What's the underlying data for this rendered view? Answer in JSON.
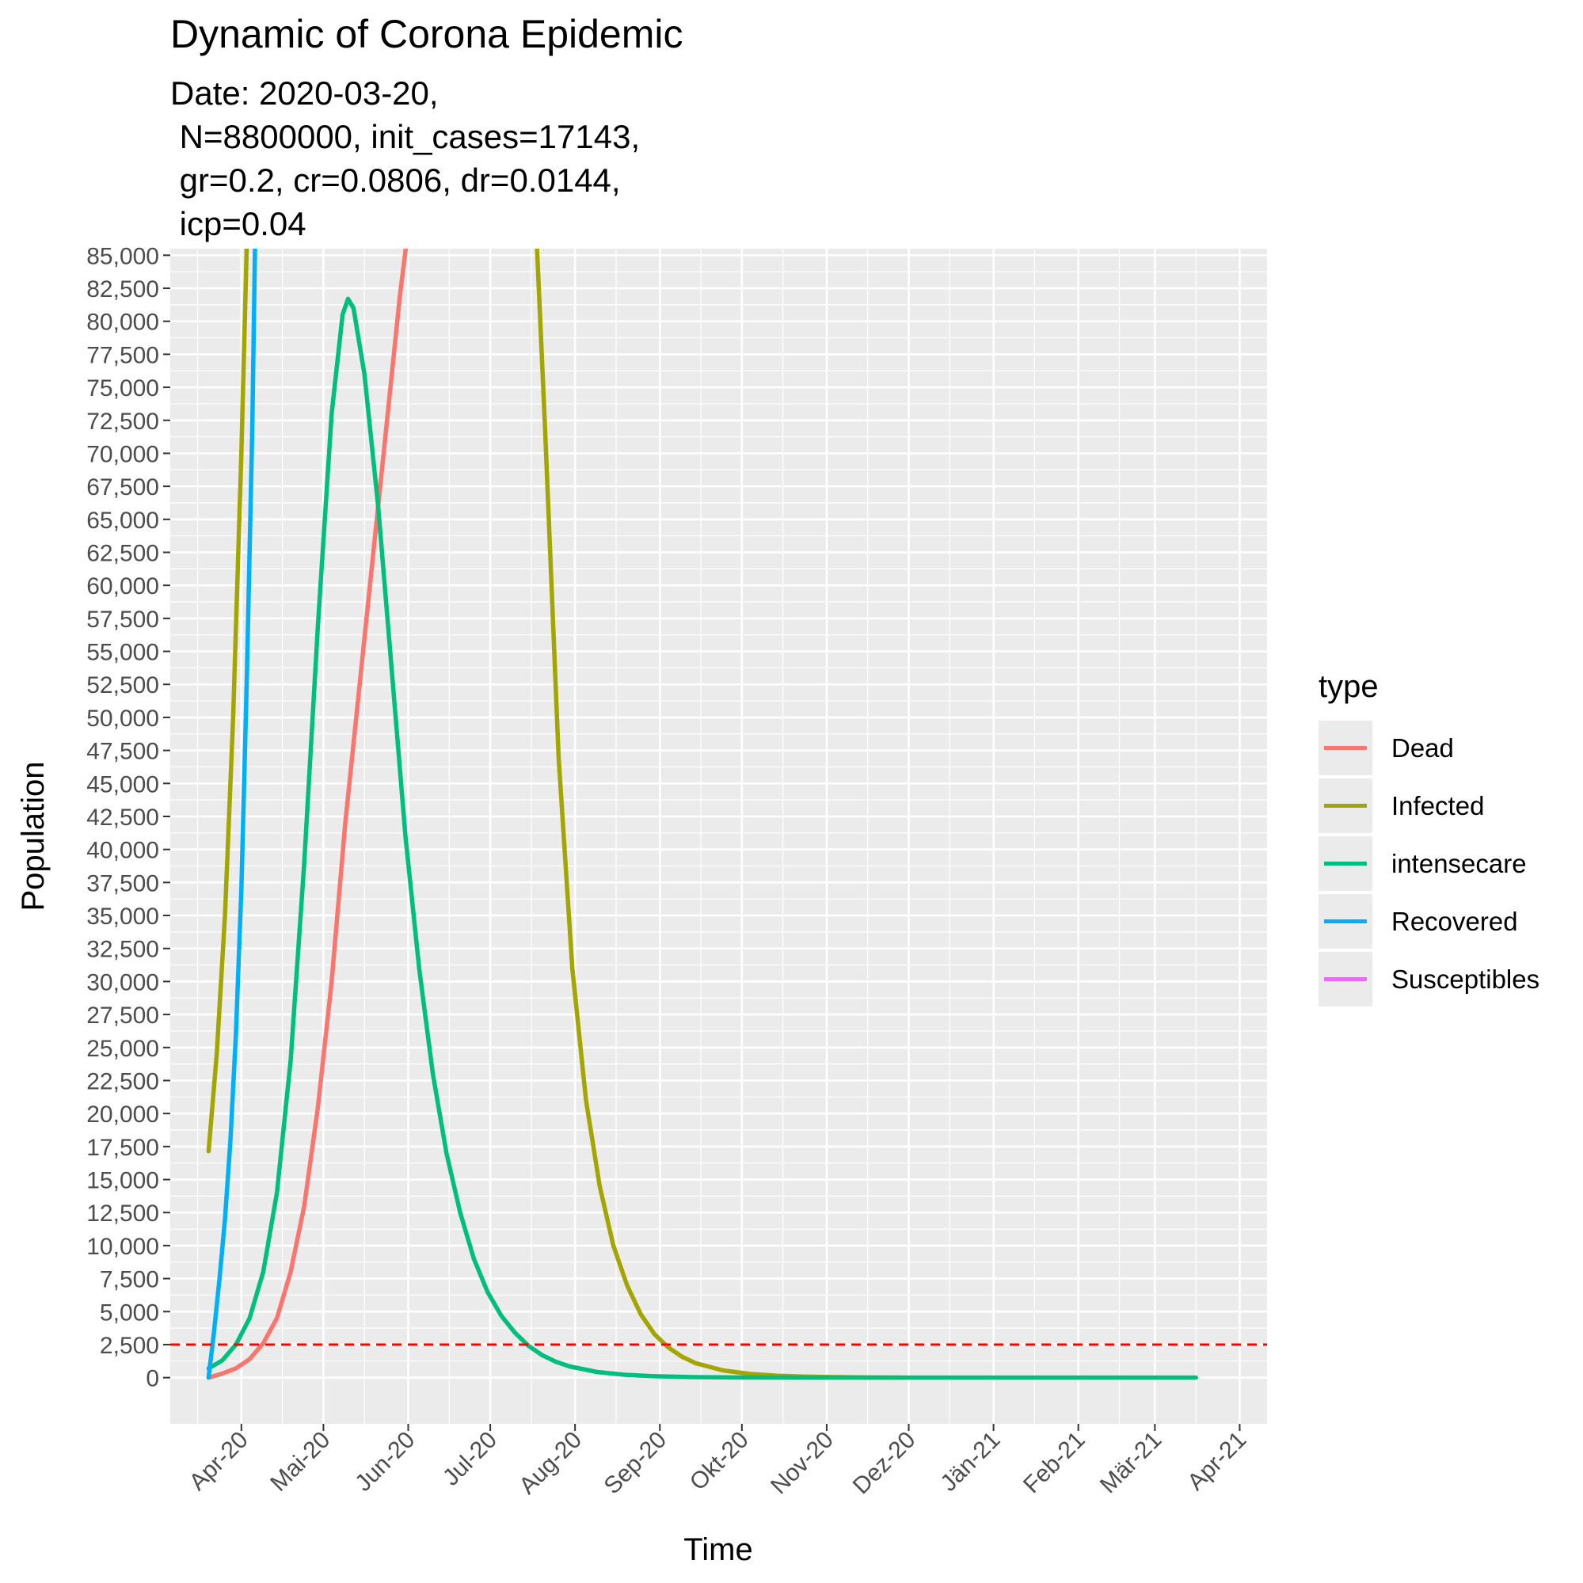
{
  "chart_data": {
    "type": "line",
    "title": "Dynamic of Corona Epidemic",
    "subtitle": "Date: 2020-03-20,\n N=8800000, init_cases=17143,\n gr=0.2, cr=0.0806, dr=0.0144,\n icp=0.04",
    "xlabel": "Time",
    "ylabel": "Population",
    "x_ticks": [
      "Apr-20",
      "Mai-20",
      "Jun-20",
      "Jul-20",
      "Aug-20",
      "Sep-20",
      "Okt-20",
      "Nov-20",
      "Dez-20",
      "Jän-21",
      "Feb-21",
      "Mär-21",
      "Apr-21"
    ],
    "y_ticks": [
      "0",
      "2,500",
      "5,000",
      "7,500",
      "10,000",
      "12,500",
      "15,000",
      "17,500",
      "20,000",
      "22,500",
      "25,000",
      "27,500",
      "30,000",
      "32,500",
      "35,000",
      "37,500",
      "40,000",
      "42,500",
      "45,000",
      "47,500",
      "50,000",
      "52,500",
      "55,000",
      "57,500",
      "60,000",
      "62,500",
      "65,000",
      "67,500",
      "70,000",
      "72,500",
      "75,000",
      "77,500",
      "80,000",
      "82,500",
      "85,000"
    ],
    "xlim": [
      "2020-03-06",
      "2021-04-11"
    ],
    "ylim": [
      -3500,
      85500
    ],
    "grid": true,
    "legend": {
      "title": "type",
      "position": "right"
    },
    "hline": {
      "value": 2500,
      "color": "#ff0000",
      "style": "dashed"
    },
    "series": [
      {
        "name": "Dead",
        "color": "#F8766D",
        "points": [
          [
            "2020-03-20",
            0
          ],
          [
            "2020-03-25",
            300
          ],
          [
            "2020-03-30",
            700
          ],
          [
            "2020-04-04",
            1400
          ],
          [
            "2020-04-09",
            2600
          ],
          [
            "2020-04-14",
            4500
          ],
          [
            "2020-04-19",
            8000
          ],
          [
            "2020-04-24",
            13000
          ],
          [
            "2020-04-29",
            20500
          ],
          [
            "2020-05-04",
            30000
          ],
          [
            "2020-05-09",
            42000
          ],
          [
            "2020-05-14",
            52000
          ],
          [
            "2020-05-19",
            62000
          ],
          [
            "2020-05-24",
            72000
          ],
          [
            "2020-05-29",
            82000
          ],
          [
            "2020-06-01",
            87000
          ]
        ]
      },
      {
        "name": "Infected",
        "color": "#A3A500",
        "points": [
          [
            "2020-03-20",
            17143
          ],
          [
            "2020-03-23",
            24500
          ],
          [
            "2020-03-26",
            35000
          ],
          [
            "2020-03-29",
            50000
          ],
          [
            "2020-04-01",
            70000
          ],
          [
            "2020-04-03",
            86000
          ],
          [
            "2020-07-18",
            86000
          ],
          [
            "2020-07-21",
            72000
          ],
          [
            "2020-07-26",
            47000
          ],
          [
            "2020-07-31",
            31000
          ],
          [
            "2020-08-05",
            21000
          ],
          [
            "2020-08-10",
            14500
          ],
          [
            "2020-08-15",
            10000
          ],
          [
            "2020-08-20",
            7000
          ],
          [
            "2020-08-25",
            4800
          ],
          [
            "2020-08-30",
            3300
          ],
          [
            "2020-09-04",
            2300
          ],
          [
            "2020-09-09",
            1600
          ],
          [
            "2020-09-14",
            1100
          ],
          [
            "2020-09-24",
            550
          ],
          [
            "2020-10-04",
            280
          ],
          [
            "2020-10-14",
            140
          ],
          [
            "2020-10-29",
            50
          ],
          [
            "2020-11-18",
            10
          ],
          [
            "2020-11-28",
            0
          ]
        ]
      },
      {
        "name": "intensecare",
        "color": "#00BF7D",
        "points": [
          [
            "2020-03-20",
            700
          ],
          [
            "2020-03-25",
            1300
          ],
          [
            "2020-03-30",
            2500
          ],
          [
            "2020-04-04",
            4500
          ],
          [
            "2020-04-09",
            8000
          ],
          [
            "2020-04-14",
            14000
          ],
          [
            "2020-04-19",
            24000
          ],
          [
            "2020-04-24",
            39000
          ],
          [
            "2020-04-29",
            57000
          ],
          [
            "2020-05-04",
            73000
          ],
          [
            "2020-05-08",
            80500
          ],
          [
            "2020-05-10",
            81700
          ],
          [
            "2020-05-12",
            81000
          ],
          [
            "2020-05-16",
            76000
          ],
          [
            "2020-05-21",
            66000
          ],
          [
            "2020-05-26",
            53500
          ],
          [
            "2020-05-31",
            41000
          ],
          [
            "2020-06-05",
            31000
          ],
          [
            "2020-06-10",
            23000
          ],
          [
            "2020-06-15",
            17000
          ],
          [
            "2020-06-20",
            12500
          ],
          [
            "2020-06-25",
            9000
          ],
          [
            "2020-06-30",
            6500
          ],
          [
            "2020-07-05",
            4700
          ],
          [
            "2020-07-10",
            3400
          ],
          [
            "2020-07-15",
            2400
          ],
          [
            "2020-07-20",
            1700
          ],
          [
            "2020-07-25",
            1200
          ],
          [
            "2020-07-30",
            850
          ],
          [
            "2020-08-09",
            430
          ],
          [
            "2020-08-19",
            220
          ],
          [
            "2020-08-29",
            110
          ],
          [
            "2020-09-13",
            40
          ],
          [
            "2020-10-03",
            10
          ],
          [
            "2020-11-02",
            0
          ],
          [
            "2021-03-16",
            0
          ]
        ]
      },
      {
        "name": "Recovered",
        "color": "#00B0F6",
        "points": [
          [
            "2020-03-20",
            0
          ],
          [
            "2020-03-22",
            3500
          ],
          [
            "2020-03-24",
            7500
          ],
          [
            "2020-03-26",
            12000
          ],
          [
            "2020-03-28",
            18000
          ],
          [
            "2020-03-30",
            26000
          ],
          [
            "2020-04-01",
            37000
          ],
          [
            "2020-04-03",
            53000
          ],
          [
            "2020-04-05",
            72000
          ],
          [
            "2020-04-06",
            86000
          ]
        ]
      },
      {
        "name": "Susceptibles",
        "color": "#E76BF3",
        "points": []
      }
    ]
  }
}
